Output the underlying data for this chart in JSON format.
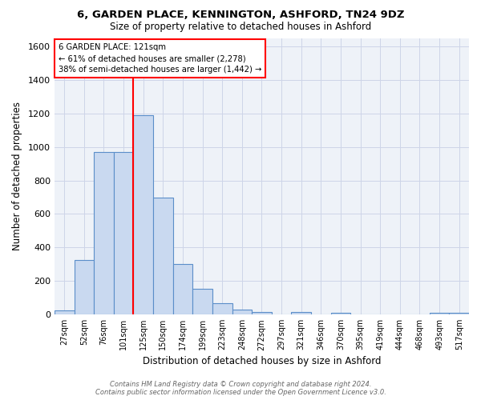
{
  "title_line1": "6, GARDEN PLACE, KENNINGTON, ASHFORD, TN24 9DZ",
  "title_line2": "Size of property relative to detached houses in Ashford",
  "xlabel": "Distribution of detached houses by size in Ashford",
  "ylabel": "Number of detached properties",
  "bar_labels": [
    "27sqm",
    "52sqm",
    "76sqm",
    "101sqm",
    "125sqm",
    "150sqm",
    "174sqm",
    "199sqm",
    "223sqm",
    "248sqm",
    "272sqm",
    "297sqm",
    "321sqm",
    "346sqm",
    "370sqm",
    "395sqm",
    "419sqm",
    "444sqm",
    "468sqm",
    "493sqm",
    "517sqm"
  ],
  "bar_heights": [
    25,
    325,
    970,
    970,
    1190,
    700,
    300,
    155,
    70,
    30,
    15,
    0,
    15,
    0,
    10,
    0,
    0,
    0,
    0,
    10,
    10
  ],
  "bar_color": "#c9d9f0",
  "bar_edge_color": "#5b8ec9",
  "grid_color": "#cdd5e8",
  "background_color": "#eef2f8",
  "red_line_bin_index": 4,
  "annotation_line1": "6 GARDEN PLACE: 121sqm",
  "annotation_line2": "← 61% of detached houses are smaller (2,278)",
  "annotation_line3": "38% of semi-detached houses are larger (1,442) →",
  "footer_line1": "Contains HM Land Registry data © Crown copyright and database right 2024.",
  "footer_line2": "Contains public sector information licensed under the Open Government Licence v3.0.",
  "ylim": [
    0,
    1650
  ],
  "yticks": [
    0,
    200,
    400,
    600,
    800,
    1000,
    1200,
    1400,
    1600
  ]
}
